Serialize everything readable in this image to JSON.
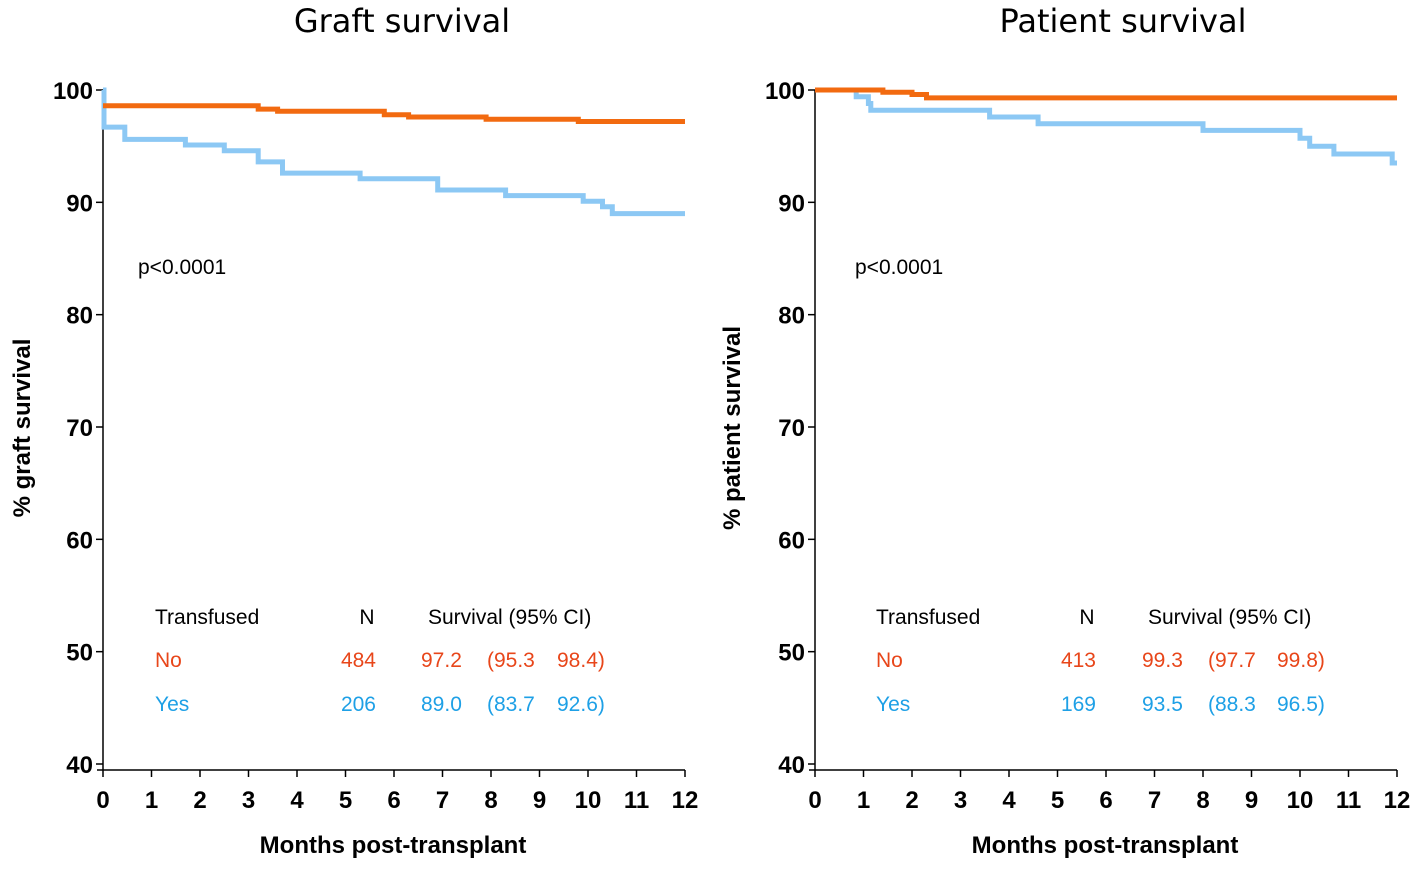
{
  "chart_data": [
    {
      "type": "line",
      "title": "Graft survival",
      "xlabel": "Months post-transplant",
      "ylabel": "% graft survival",
      "xlim": [
        0,
        12
      ],
      "ylim": [
        40,
        100
      ],
      "xticks": [
        0,
        1,
        2,
        3,
        4,
        5,
        6,
        7,
        8,
        9,
        10,
        11,
        12
      ],
      "yticks": [
        40,
        50,
        60,
        70,
        80,
        90,
        100
      ],
      "annotation": "p<0.0001",
      "series": [
        {
          "name": "No",
          "color": "#F26A10",
          "steps": [
            [
              0,
              98.6
            ],
            [
              3.2,
              98.3
            ],
            [
              3.6,
              98.1
            ],
            [
              5.8,
              97.8
            ],
            [
              6.3,
              97.6
            ],
            [
              7.9,
              97.4
            ],
            [
              9.8,
              97.2
            ],
            [
              12,
              97.2
            ]
          ]
        },
        {
          "name": "Yes",
          "color": "#8CC8F4",
          "steps": [
            [
              0,
              100
            ],
            [
              0.02,
              96.7
            ],
            [
              0.45,
              95.6
            ],
            [
              1.7,
              95.1
            ],
            [
              2.5,
              94.6
            ],
            [
              3.2,
              93.6
            ],
            [
              3.7,
              92.6
            ],
            [
              5.3,
              92.1
            ],
            [
              6.9,
              91.1
            ],
            [
              8.3,
              90.6
            ],
            [
              9.9,
              90.1
            ],
            [
              10.3,
              89.6
            ],
            [
              10.5,
              89.0
            ],
            [
              12,
              89.0
            ]
          ]
        }
      ],
      "table": {
        "headers": [
          "Transfused",
          "N",
          "Survival (95% CI)"
        ],
        "rows": [
          {
            "group": "No",
            "n": "484",
            "survival": "97.2",
            "ci_low": "(95.3",
            "ci_high": "98.4)",
            "color": "#E8461A"
          },
          {
            "group": "Yes",
            "n": "206",
            "survival": "89.0",
            "ci_low": "(83.7",
            "ci_high": "92.6)",
            "color": "#1EA0E6"
          }
        ]
      }
    },
    {
      "type": "line",
      "title": "Patient survival",
      "xlabel": "Months post-transplant",
      "ylabel": "% patient survival",
      "xlim": [
        0,
        12
      ],
      "ylim": [
        40,
        100
      ],
      "xticks": [
        0,
        1,
        2,
        3,
        4,
        5,
        6,
        7,
        8,
        9,
        10,
        11,
        12
      ],
      "yticks": [
        40,
        50,
        60,
        70,
        80,
        90,
        100
      ],
      "annotation": "p<0.0001",
      "series": [
        {
          "name": "No",
          "color": "#F26A10",
          "steps": [
            [
              0,
              100
            ],
            [
              0.9,
              100
            ],
            [
              1.4,
              99.8
            ],
            [
              2.0,
              99.6
            ],
            [
              2.3,
              99.3
            ],
            [
              12,
              99.3
            ]
          ]
        },
        {
          "name": "Yes",
          "color": "#8CC8F4",
          "steps": [
            [
              0,
              100
            ],
            [
              0.85,
              99.4
            ],
            [
              1.1,
              98.8
            ],
            [
              1.15,
              98.2
            ],
            [
              3.6,
              97.6
            ],
            [
              4.6,
              97.0
            ],
            [
              8.0,
              96.4
            ],
            [
              10.0,
              95.7
            ],
            [
              10.2,
              95.0
            ],
            [
              10.7,
              94.3
            ],
            [
              11.9,
              93.5
            ],
            [
              12,
              93.5
            ]
          ]
        }
      ],
      "table": {
        "headers": [
          "Transfused",
          "N",
          "Survival (95% CI)"
        ],
        "rows": [
          {
            "group": "No",
            "n": "413",
            "survival": "99.3",
            "ci_low": "(97.7",
            "ci_high": "99.8)",
            "color": "#E8461A"
          },
          {
            "group": "Yes",
            "n": "169",
            "survival": "93.5",
            "ci_low": "(88.3",
            "ci_high": "96.5)",
            "color": "#1EA0E6"
          }
        ]
      }
    }
  ]
}
